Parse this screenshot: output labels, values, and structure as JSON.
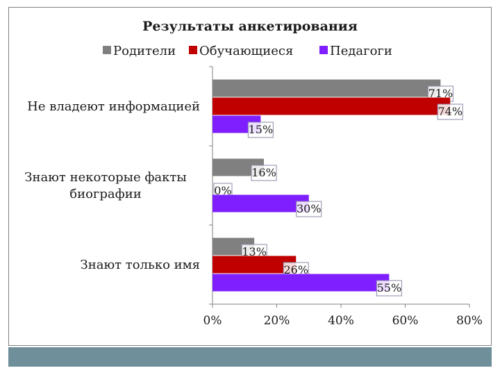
{
  "chart_data": {
    "type": "bar",
    "orientation": "horizontal",
    "title": "Результаты анкетирования",
    "categories": [
      "Не владеют информацией",
      "Знают некоторые факты биографии",
      "Знают только имя"
    ],
    "category_lines": [
      [
        "Не владеют информацией"
      ],
      [
        "Знают некоторые факты",
        "биографии"
      ],
      [
        "Знают только имя"
      ]
    ],
    "series": [
      {
        "name": "Родители",
        "color": "#808080",
        "values": [
          71,
          16,
          13
        ],
        "labels": [
          "71%",
          "16%",
          "13%"
        ]
      },
      {
        "name": "Обучающиеся",
        "color": "#c00000",
        "values": [
          74,
          0,
          26
        ],
        "labels": [
          "74%",
          "0%",
          "26%"
        ]
      },
      {
        "name": "Педагоги",
        "color": "#7f1fff",
        "values": [
          15,
          30,
          55
        ],
        "labels": [
          "15%",
          "30%",
          "55%"
        ]
      }
    ],
    "xlim": [
      0,
      80
    ],
    "xticks": [
      0,
      20,
      40,
      60,
      80
    ],
    "xtick_labels": [
      "0%",
      "20%",
      "40%",
      "60%",
      "80%"
    ],
    "legend_position": "top",
    "grid": false
  }
}
